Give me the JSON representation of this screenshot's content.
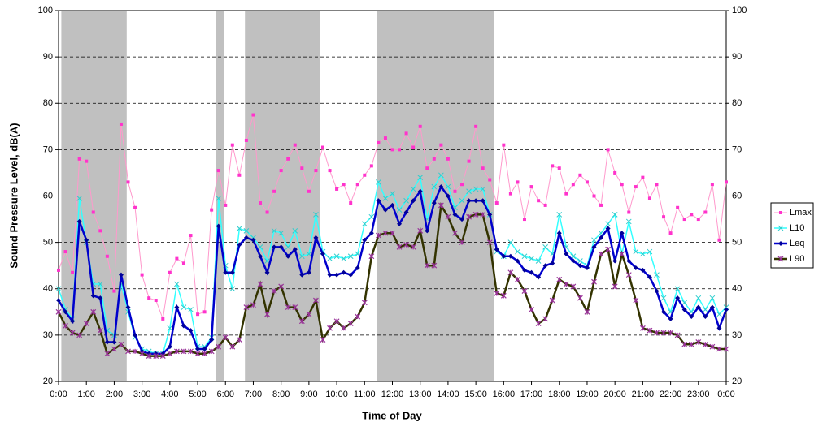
{
  "chart_data": {
    "type": "line",
    "y_label": "Sound Pressure Level, dB(A)",
    "x_label": "Time of Day",
    "ylim": [
      20,
      100
    ],
    "yticks": [
      20,
      30,
      40,
      50,
      60,
      70,
      80,
      90,
      100
    ],
    "xlim": [
      0,
      24
    ],
    "xticks": [
      {
        "value": 0,
        "label": "0:00"
      },
      {
        "value": 1,
        "label": "1:00"
      },
      {
        "value": 2,
        "label": "2:00"
      },
      {
        "value": 3,
        "label": "3:00"
      },
      {
        "value": 4,
        "label": "4:00"
      },
      {
        "value": 5,
        "label": "5:00"
      },
      {
        "value": 6,
        "label": "6:00"
      },
      {
        "value": 7,
        "label": "7:00"
      },
      {
        "value": 8,
        "label": "8:00"
      },
      {
        "value": 9,
        "label": "9:00"
      },
      {
        "value": 10,
        "label": "10:00"
      },
      {
        "value": 11,
        "label": "11:00"
      },
      {
        "value": 12,
        "label": "12:00"
      },
      {
        "value": 13,
        "label": "13:00"
      },
      {
        "value": 14,
        "label": "14:00"
      },
      {
        "value": 15,
        "label": "15:00"
      },
      {
        "value": 16,
        "label": "16:00"
      },
      {
        "value": 17,
        "label": "17:00"
      },
      {
        "value": 18,
        "label": "18:00"
      },
      {
        "value": 19,
        "label": "19:00"
      },
      {
        "value": 20,
        "label": "20:00"
      },
      {
        "value": 21,
        "label": "21:00"
      },
      {
        "value": 22,
        "label": "22:00"
      },
      {
        "value": 23,
        "label": "23:00"
      },
      {
        "value": 24,
        "label": "0:00"
      }
    ],
    "grid": true,
    "grid_color": "#000000",
    "shaded_ranges": [
      [
        0.1,
        2.45
      ],
      [
        5.67,
        5.96
      ],
      [
        6.7,
        9.41
      ],
      [
        11.43,
        15.64
      ]
    ],
    "shade_color": "#c0c0c0",
    "legend": "right",
    "x": [
      0,
      0.25,
      0.5,
      0.75,
      1,
      1.25,
      1.5,
      1.75,
      2,
      2.25,
      2.5,
      2.75,
      3,
      3.25,
      3.5,
      3.75,
      4,
      4.25,
      4.5,
      4.75,
      5,
      5.25,
      5.5,
      5.75,
      6,
      6.25,
      6.5,
      6.75,
      7,
      7.25,
      7.5,
      7.75,
      8,
      8.25,
      8.5,
      8.75,
      9,
      9.25,
      9.5,
      9.75,
      10,
      10.25,
      10.5,
      10.75,
      11,
      11.25,
      11.5,
      11.75,
      12,
      12.25,
      12.5,
      12.75,
      13,
      13.25,
      13.5,
      13.75,
      14,
      14.25,
      14.5,
      14.75,
      15,
      15.25,
      15.5,
      15.75,
      16,
      16.25,
      16.5,
      16.75,
      17,
      17.25,
      17.5,
      17.75,
      18,
      18.25,
      18.5,
      18.75,
      19,
      19.25,
      19.5,
      19.75,
      20,
      20.25,
      20.5,
      20.75,
      21,
      21.25,
      21.5,
      21.75,
      22,
      22.25,
      22.5,
      22.75,
      23,
      23.25,
      23.5,
      23.75,
      24
    ],
    "series": [
      {
        "name": "Lmax",
        "color": "#ff99cc",
        "marker_color": "#ff33cc",
        "marker": "square",
        "width": 1,
        "values": [
          44,
          48,
          43.5,
          68,
          67.5,
          56.5,
          52.5,
          47,
          39.5,
          75.5,
          63,
          57.5,
          43,
          38,
          37.5,
          33.5,
          43.5,
          46.5,
          45.5,
          51.5,
          34.5,
          35,
          57,
          65.5,
          58,
          71,
          64.5,
          72,
          77.5,
          58.5,
          56.5,
          61,
          65.5,
          68,
          71,
          66,
          61,
          65.5,
          70.5,
          65.5,
          61.5,
          62.5,
          58.5,
          62.5,
          64.5,
          66.5,
          71.5,
          72.5,
          70,
          70,
          73.5,
          70.5,
          75,
          66,
          68,
          71,
          68,
          61,
          62.5,
          67.5,
          75,
          66,
          63.5,
          58.5,
          71,
          60.5,
          63,
          55,
          62,
          59,
          58,
          66.5,
          66,
          60.5,
          62.5,
          64.5,
          63,
          60,
          58,
          70,
          65,
          62.5,
          56.5,
          62,
          64,
          59.5,
          62.5,
          55.5,
          52,
          57.5,
          55,
          56,
          55,
          56.5,
          62.5,
          50.5,
          63
        ]
      },
      {
        "name": "L10",
        "color": "#33ffff",
        "marker_color": "#33cccc",
        "marker": "x",
        "width": 1.5,
        "values": [
          40,
          35.5,
          33.5,
          59.5,
          50,
          41,
          41,
          31,
          30,
          41,
          35,
          29.5,
          27,
          26.5,
          26,
          26,
          31.5,
          41,
          36,
          35.5,
          27.5,
          27.5,
          29.5,
          59.5,
          45,
          40,
          53,
          52.5,
          51,
          49,
          46,
          52.5,
          52,
          49,
          52.5,
          47,
          47.5,
          56,
          48,
          46.5,
          47,
          46.5,
          47,
          47.5,
          54,
          55.5,
          63,
          59.5,
          60.5,
          57,
          59,
          61.5,
          64,
          55,
          62,
          64.5,
          62,
          57.5,
          59,
          61,
          61.5,
          61.5,
          56,
          48,
          47,
          50,
          48,
          47,
          46.5,
          46,
          49,
          47.5,
          56,
          49,
          47,
          46,
          45,
          50.5,
          52,
          54,
          56,
          47.5,
          54.5,
          48,
          47.5,
          48,
          43,
          38,
          35,
          40,
          37,
          35,
          38,
          35.5,
          38,
          34.5,
          36
        ]
      },
      {
        "name": "Leq",
        "color": "#0000cc",
        "marker_color": "#000099",
        "marker": "diamond",
        "width": 2.5,
        "values": [
          37.5,
          35,
          33,
          54.5,
          50.5,
          38.5,
          38,
          28.5,
          28.5,
          43,
          36,
          30,
          26.5,
          26,
          26,
          26,
          27.5,
          36,
          32,
          31,
          27,
          27,
          29,
          53.5,
          43.5,
          43.5,
          49.5,
          51,
          50.5,
          47,
          43.5,
          49,
          49,
          47,
          48.5,
          43,
          43.5,
          51,
          47.5,
          43,
          43,
          43.5,
          43,
          44.5,
          50.5,
          52,
          59,
          57,
          58,
          54,
          56.5,
          59,
          61,
          52.5,
          58.5,
          62,
          60,
          56,
          55,
          59,
          59,
          59,
          56,
          48.5,
          47,
          47,
          46,
          44,
          43.5,
          42.5,
          45,
          45.5,
          52,
          47.5,
          46,
          45,
          44.5,
          49,
          51,
          53,
          46,
          52,
          46,
          44.5,
          44,
          42.5,
          39.5,
          35,
          33.5,
          38,
          35.5,
          34,
          36,
          34,
          36,
          31.5,
          35.5
        ]
      },
      {
        "name": "L90",
        "color": "#333300",
        "marker_color": "#993399",
        "marker": "star",
        "width": 2.5,
        "values": [
          35,
          32,
          30.5,
          30,
          32.5,
          35,
          31,
          26,
          27,
          28,
          26.5,
          26.5,
          26,
          25.5,
          25.5,
          25.5,
          26,
          26.5,
          26.5,
          26.5,
          26,
          26,
          26.5,
          27.5,
          29.5,
          27.5,
          29,
          36,
          36.5,
          41,
          34.5,
          39.5,
          40.5,
          36,
          36,
          33,
          34.5,
          37.5,
          29,
          31.5,
          33,
          31.5,
          32.5,
          34,
          37,
          47,
          51.5,
          52,
          52,
          49,
          49.5,
          49,
          52.5,
          45,
          45,
          58,
          55.5,
          52,
          50,
          55.5,
          56,
          56,
          50,
          39,
          38.5,
          43.5,
          42,
          39.5,
          35.5,
          32.5,
          33.5,
          37.5,
          42,
          41,
          40.5,
          38,
          35,
          41.5,
          47.5,
          48.5,
          40.5,
          47.5,
          43,
          37.5,
          31.5,
          31,
          30.5,
          30.5,
          30.5,
          30,
          28,
          28,
          28.5,
          28,
          27.5,
          27,
          27
        ]
      }
    ]
  }
}
